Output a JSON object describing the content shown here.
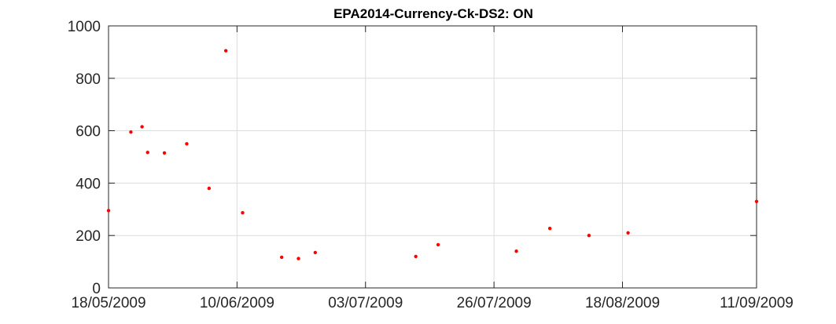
{
  "chart_data": {
    "type": "scatter",
    "title": "EPA2014-Currency-Ck-DS2: ON",
    "xlabel": "",
    "ylabel": "",
    "x_axis_type": "date",
    "xlim": [
      "2009-05-18",
      "2009-09-11"
    ],
    "ylim": [
      0,
      1000
    ],
    "x_ticks": [
      {
        "date": "2009-05-18",
        "label": "18/05/2009"
      },
      {
        "date": "2009-06-10",
        "label": "10/06/2009"
      },
      {
        "date": "2009-07-03",
        "label": "03/07/2009"
      },
      {
        "date": "2009-07-26",
        "label": "26/07/2009"
      },
      {
        "date": "2009-08-18",
        "label": "18/08/2009"
      },
      {
        "date": "2009-09-11",
        "label": "11/09/2009"
      }
    ],
    "y_ticks": [
      {
        "value": 0,
        "label": "0"
      },
      {
        "value": 200,
        "label": "200"
      },
      {
        "value": 400,
        "label": "400"
      },
      {
        "value": 600,
        "label": "600"
      },
      {
        "value": 800,
        "label": "800"
      },
      {
        "value": 1000,
        "label": "1000"
      }
    ],
    "grid": true,
    "legend": "none",
    "marker_color": "#ff0000",
    "grid_color": "#dcdcdc",
    "axis_color": "#262626",
    "points": [
      {
        "x": "2009-05-18",
        "y": 295
      },
      {
        "x": "2009-05-22",
        "y": 595
      },
      {
        "x": "2009-05-24",
        "y": 615
      },
      {
        "x": "2009-05-25",
        "y": 517
      },
      {
        "x": "2009-05-28",
        "y": 515
      },
      {
        "x": "2009-06-01",
        "y": 550
      },
      {
        "x": "2009-06-05",
        "y": 380
      },
      {
        "x": "2009-06-08",
        "y": 905
      },
      {
        "x": "2009-06-11",
        "y": 287
      },
      {
        "x": "2009-06-18",
        "y": 117
      },
      {
        "x": "2009-06-21",
        "y": 112
      },
      {
        "x": "2009-06-24",
        "y": 135
      },
      {
        "x": "2009-07-12",
        "y": 120
      },
      {
        "x": "2009-07-16",
        "y": 165
      },
      {
        "x": "2009-07-30",
        "y": 140
      },
      {
        "x": "2009-08-05",
        "y": 227
      },
      {
        "x": "2009-08-12",
        "y": 200
      },
      {
        "x": "2009-08-19",
        "y": 210
      },
      {
        "x": "2009-09-11",
        "y": 330
      }
    ]
  }
}
